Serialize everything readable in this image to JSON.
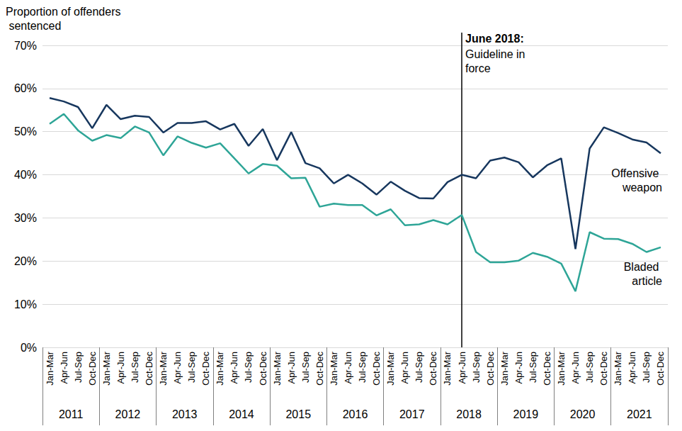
{
  "chart_data": {
    "type": "line",
    "y_label": "Proportion of offenders sentenced",
    "categories": [
      "Jan-Mar",
      "Apr-Jun",
      "Jul-Sep",
      "Oct-Dec",
      "Jan-Mar",
      "Apr-Jun",
      "Jul-Sep",
      "Oct-Dec",
      "Jan-Mar",
      "Apr-Jun",
      "Jul-Sep",
      "Oct-Dec",
      "Jan-Mar",
      "Apr-Jun",
      "Jul-Sep",
      "Oct-Dec",
      "Jan-Mar",
      "Apr-Jun",
      "Jul-Sep",
      "Oct-Dec",
      "Jan-Mar",
      "Apr-Jun",
      "Jul-Sep",
      "Oct-Dec",
      "Jan-Mar",
      "Apr-Jun",
      "Jul-Sep",
      "Oct-Dec",
      "Jan-Mar",
      "Apr-Jun",
      "Jul-Sep",
      "Oct-Dec",
      "Jan-Mar",
      "Apr-Jun",
      "Jul-Sep",
      "Oct-Dec",
      "Jan-Mar",
      "Apr-Jun",
      "Jul-Sep",
      "Oct-Dec",
      "Jan-Mar",
      "Apr-Jun",
      "Jul-Sep",
      "Oct-Dec"
    ],
    "x_groups": [
      "2011",
      "2012",
      "2013",
      "2014",
      "2015",
      "2016",
      "2017",
      "2018",
      "2019",
      "2020",
      "2021"
    ],
    "series": [
      {
        "name": "Offensive weapon",
        "color": "#17375e",
        "values": [
          57.8,
          57.0,
          55.7,
          50.8,
          56.2,
          52.9,
          53.7,
          53.4,
          49.8,
          52.0,
          52.0,
          52.4,
          50.5,
          51.8,
          46.7,
          50.6,
          43.4,
          49.9,
          42.7,
          41.5,
          38.0,
          40.0,
          38.0,
          35.4,
          38.4,
          36.3,
          34.6,
          34.5,
          38.3,
          40.0,
          39.2,
          43.3,
          44.0,
          42.9,
          39.4,
          42.2,
          43.8,
          22.8,
          46.1,
          51.0,
          49.7,
          48.2,
          47.5,
          45.0
        ]
      },
      {
        "name": "Bladed article",
        "color": "#2ea597",
        "values": [
          51.8,
          54.1,
          50.3,
          47.9,
          49.2,
          48.5,
          51.2,
          49.8,
          44.5,
          48.9,
          47.4,
          46.3,
          47.3,
          43.8,
          40.3,
          42.5,
          42.1,
          39.2,
          39.3,
          32.6,
          33.3,
          33.0,
          33.0,
          30.6,
          32.0,
          28.3,
          28.5,
          29.5,
          28.5,
          30.7,
          22.1,
          19.7,
          19.7,
          20.1,
          21.9,
          21.0,
          19.4,
          13.0,
          26.7,
          25.2,
          25.1,
          24.0,
          22.1,
          23.2
        ]
      }
    ],
    "ylim": [
      0,
      70
    ],
    "yticks": [
      {
        "value": 0,
        "label": "0%"
      },
      {
        "value": 10,
        "label": "10%"
      },
      {
        "value": 20,
        "label": "20%"
      },
      {
        "value": 30,
        "label": "30%"
      },
      {
        "value": 40,
        "label": "40%"
      },
      {
        "value": 50,
        "label": "50%"
      },
      {
        "value": 60,
        "label": "60%"
      },
      {
        "value": 70,
        "label": "70%"
      }
    ],
    "grid": true,
    "annotations": [
      {
        "year": "2018",
        "quarter": "Apr-Jun",
        "label": "June 2018:",
        "text": "Guideline in force"
      }
    ]
  }
}
